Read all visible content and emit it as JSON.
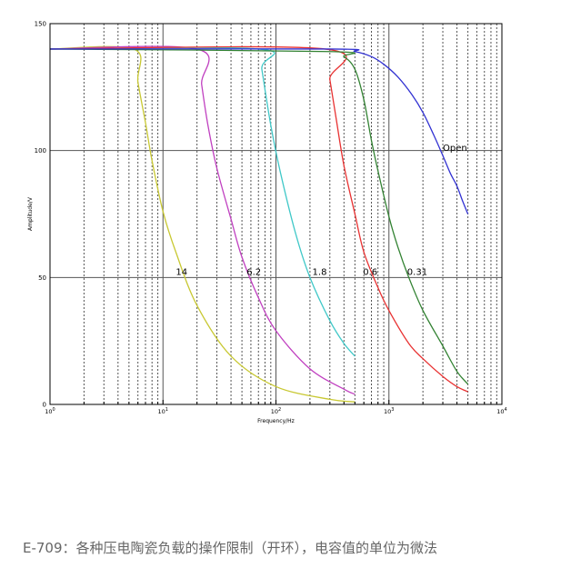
{
  "caption": "E-709：各种压电陶瓷负载的操作限制（开环），电容值的单位为微法",
  "chart_data": {
    "type": "line",
    "title": "",
    "xlabel": "Frequency/Hz",
    "ylabel": "Amplitude/V",
    "x_scale": "log",
    "xlim": [
      1,
      10000
    ],
    "ylim": [
      0,
      150
    ],
    "x_tick_labels": [
      {
        "base": "10",
        "exp": "0",
        "value": 1
      },
      {
        "base": "10",
        "exp": "1",
        "value": 10
      },
      {
        "base": "10",
        "exp": "2",
        "value": 100
      },
      {
        "base": "10",
        "exp": "3",
        "value": 1000
      },
      {
        "base": "10",
        "exp": "4",
        "value": 10000
      }
    ],
    "y_ticks": [
      0,
      50,
      100,
      150
    ],
    "y_tick_labels": [
      "0",
      "50",
      "100",
      "150"
    ],
    "grid": true,
    "legend": "none",
    "series": [
      {
        "label": "14",
        "color": "#c8c832",
        "label_at": [
          13,
          52
        ],
        "x": [
          1,
          5.5,
          6,
          7,
          8,
          10,
          13,
          20,
          40,
          100,
          300,
          500
        ],
        "y": [
          140,
          140,
          127,
          111,
          96,
          76,
          60,
          39,
          19,
          7,
          2,
          1
        ]
      },
      {
        "label": "6.2",
        "color": "#c040c0",
        "label_at": [
          55,
          52
        ],
        "x": [
          1,
          20,
          22,
          25,
          30,
          40,
          50,
          70,
          100,
          200,
          400,
          500
        ],
        "y": [
          140,
          140,
          126,
          110,
          93,
          73,
          58,
          42,
          29,
          14,
          6,
          4
        ]
      },
      {
        "label": "1.8",
        "color": "#40c8c8",
        "label_at": [
          210,
          52
        ],
        "x": [
          1,
          70,
          75,
          90,
          110,
          150,
          200,
          300,
          400,
          500
        ],
        "y": [
          140,
          140,
          132,
          110,
          91,
          67,
          50,
          33,
          24,
          19
        ]
      },
      {
        "label": "0.6",
        "color": "#e83232",
        "label_at": [
          590,
          52
        ],
        "x": [
          1,
          270,
          300,
          340,
          400,
          500,
          600,
          800,
          1000,
          1500,
          2000,
          3000,
          4000,
          5000
        ],
        "y": [
          140,
          140,
          128,
          113,
          94,
          75,
          60,
          46,
          37,
          24,
          18,
          11,
          7,
          5
        ]
      },
      {
        "label": "0.31",
        "color": "#328232",
        "label_at": [
          1450,
          52
        ],
        "x": [
          1,
          300,
          400,
          500,
          600,
          700,
          800,
          1000,
          1200,
          1500,
          2000,
          3000,
          4000,
          5000
        ],
        "y": [
          140,
          139,
          137,
          132,
          120,
          104,
          92,
          74,
          62,
          50,
          37,
          23,
          13,
          8
        ]
      },
      {
        "label": "Open",
        "color": "#3232d2",
        "label_at": [
          3000,
          101
        ],
        "x": [
          1,
          300,
          500,
          700,
          900,
          1200,
          1600,
          2000,
          2500,
          3000,
          3500,
          4000,
          4500,
          5000
        ],
        "y": [
          140,
          140,
          139,
          137,
          134,
          129,
          122,
          115,
          106,
          98,
          91,
          86,
          80,
          75
        ]
      }
    ]
  }
}
